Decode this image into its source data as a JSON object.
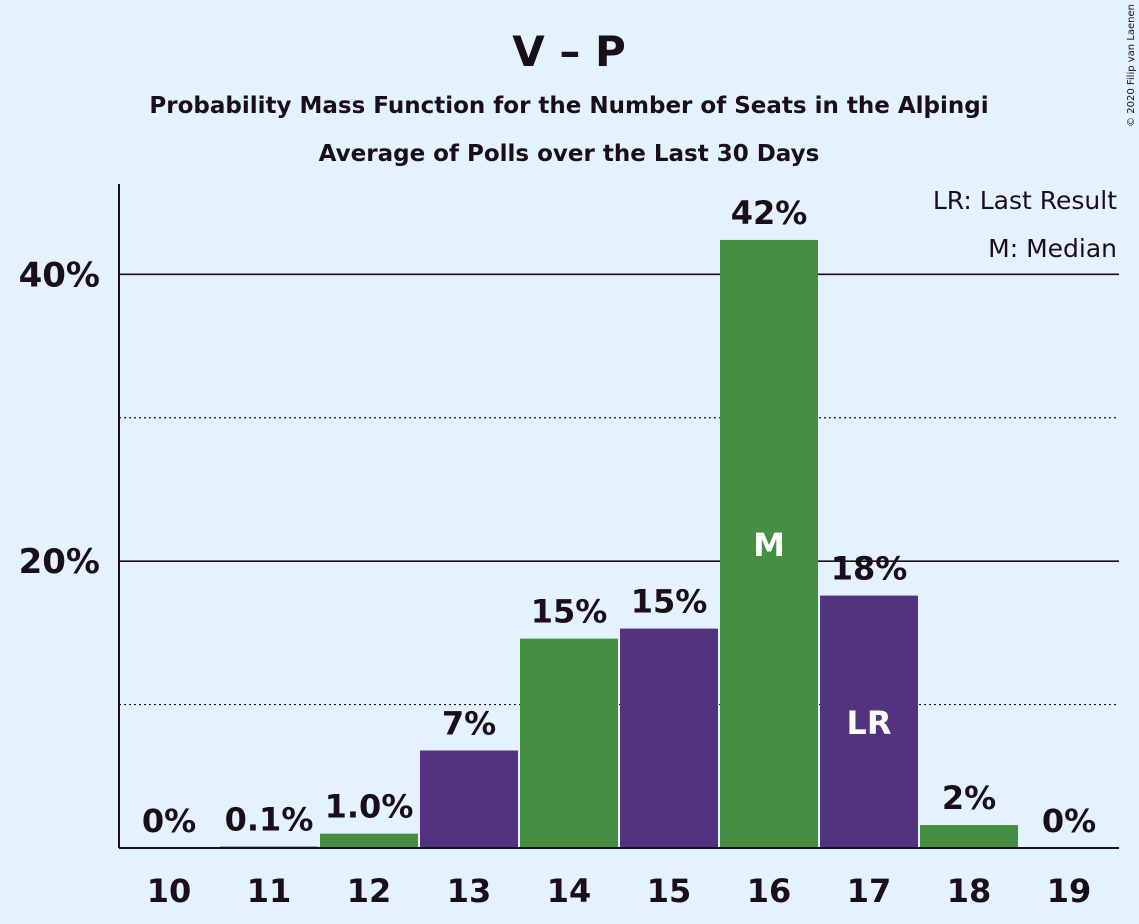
{
  "chart_data": {
    "type": "bar",
    "title": "V – P",
    "subtitle1": "Probability Mass Function for the Number of Seats in the Alþingi",
    "subtitle2": "Average of Polls over the Last 30 Days",
    "copyright": "© 2020 Filip van Laenen",
    "legend": {
      "placement": "top-right",
      "entries": [
        "LR: Last Result",
        "M: Median"
      ]
    },
    "categories": [
      "10",
      "11",
      "12",
      "13",
      "14",
      "15",
      "16",
      "17",
      "18",
      "19"
    ],
    "values": [
      0,
      0.1,
      1.0,
      7,
      15,
      15,
      42,
      18,
      2,
      0
    ],
    "plot_values": [
      0,
      0.1,
      1.0,
      6.8,
      14.6,
      15.3,
      42.4,
      17.6,
      1.6,
      0
    ],
    "labels": [
      "0%",
      "0.1%",
      "1.0%",
      "7%",
      "15%",
      "15%",
      "42%",
      "18%",
      "2%",
      "0%"
    ],
    "bar_colors": [
      "#468f42",
      "#55327f",
      "#468f42",
      "#55327f",
      "#468f42",
      "#55327f",
      "#468f42",
      "#55327f",
      "#468f42",
      "#55327f"
    ],
    "markers": [
      {
        "category": "16",
        "text": "M"
      },
      {
        "category": "17",
        "text": "LR"
      }
    ],
    "yticks": [
      {
        "value": 20,
        "label": "20%"
      },
      {
        "value": 40,
        "label": "40%"
      }
    ],
    "minor_gridlines": [
      10,
      30
    ],
    "ylim": [
      0,
      46.3
    ],
    "grid": true
  }
}
